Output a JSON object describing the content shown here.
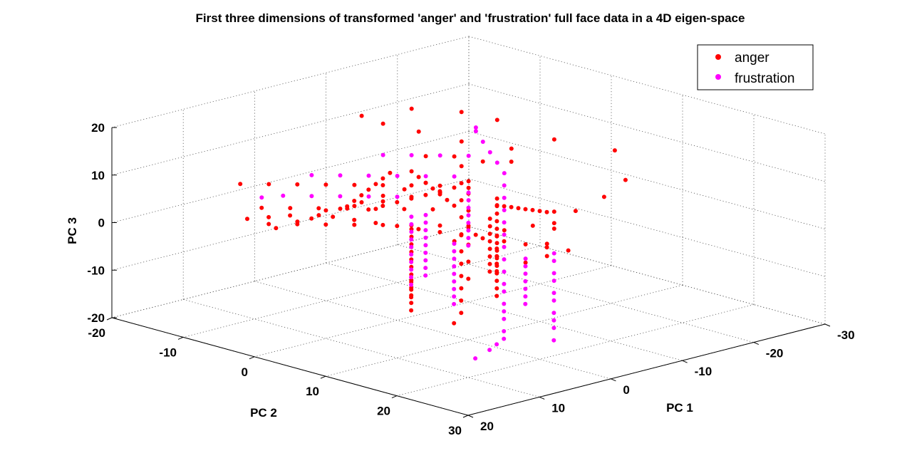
{
  "chart_data": {
    "type": "scatter",
    "title": "First three dimensions of transformed 'anger' and 'frustration' full face data in a 4D eigen-space",
    "xlabel": "PC 1",
    "ylabel": "PC 2",
    "zlabel": "PC 3",
    "xlim": [
      -30,
      20
    ],
    "ylim": [
      -20,
      30
    ],
    "zlim": [
      -20,
      20
    ],
    "xticks": [
      "-30",
      "-20",
      "-10",
      "0",
      "10",
      "20"
    ],
    "yticks": [
      "-20",
      "-10",
      "0",
      "10",
      "20",
      "30"
    ],
    "zticks": [
      "-20",
      "-10",
      "0",
      "10",
      "20"
    ],
    "grid": true,
    "legend_position": "top-right",
    "series": [
      {
        "name": "anger",
        "color": "#ff0000",
        "points": [
          [
            -25.5,
            5,
            8
          ],
          [
            -24,
            -2,
            8
          ],
          [
            -21,
            -5,
            6
          ],
          [
            -18,
            -9,
            7
          ],
          [
            -15,
            -12,
            9
          ],
          [
            -12,
            -14,
            11
          ],
          [
            -10,
            -15,
            13
          ],
          [
            -13,
            -11,
            15
          ],
          [
            -17,
            -8,
            14
          ],
          [
            -20,
            -6,
            12
          ],
          [
            -26,
            6,
            2
          ],
          [
            -25,
            4,
            -2
          ],
          [
            -23,
            2,
            -5
          ],
          [
            -22,
            0,
            -8
          ],
          [
            -21,
            -2,
            -9
          ],
          [
            -19,
            -4,
            -10
          ],
          [
            -17,
            -6,
            -11
          ],
          [
            -15,
            -7,
            -12
          ],
          [
            -20,
            2,
            -4
          ],
          [
            -18,
            4,
            -6
          ],
          [
            -16,
            5,
            -8
          ],
          [
            -14,
            7,
            -9
          ],
          [
            -12,
            6,
            -10
          ],
          [
            -9,
            -5,
            9
          ],
          [
            -11,
            -3,
            9
          ],
          [
            -13,
            -1,
            8
          ],
          [
            -15,
            1,
            8
          ],
          [
            -8,
            2,
            7
          ],
          [
            -6,
            4,
            6
          ],
          [
            -4,
            6,
            4
          ],
          [
            -2,
            8,
            2
          ],
          [
            0,
            10,
            0
          ],
          [
            2,
            12,
            -2
          ],
          [
            4,
            14,
            -4
          ],
          [
            -10,
            0,
            4
          ],
          [
            -8,
            -2,
            3
          ],
          [
            -6,
            -4,
            2
          ],
          [
            -4,
            -6,
            1
          ],
          [
            -2,
            -8,
            0
          ],
          [
            0,
            -10,
            -1
          ],
          [
            -14,
            -5,
            5
          ],
          [
            -12,
            -3,
            3
          ],
          [
            -10,
            -1,
            1
          ],
          [
            -8,
            1,
            -1
          ],
          [
            -6,
            3,
            -3
          ],
          [
            -4,
            5,
            -5
          ],
          [
            -2,
            7,
            -6
          ],
          [
            0,
            9,
            -7
          ],
          [
            2,
            11,
            -8
          ],
          [
            4,
            13,
            -9
          ],
          [
            6,
            15,
            -10
          ],
          [
            8,
            16,
            -11
          ],
          [
            -12,
            12,
            -5
          ],
          [
            -10,
            11,
            -4
          ],
          [
            -8,
            10,
            -3
          ],
          [
            -6,
            9,
            -2
          ],
          [
            -4,
            8,
            -1
          ],
          [
            -2,
            7,
            0
          ],
          [
            0,
            6,
            1
          ],
          [
            2,
            5,
            2
          ],
          [
            4,
            4,
            3
          ],
          [
            6,
            3,
            4
          ],
          [
            8,
            2,
            5
          ],
          [
            10,
            1,
            6
          ],
          [
            12,
            0,
            6
          ],
          [
            14,
            -1,
            7
          ],
          [
            16,
            -2,
            7
          ],
          [
            18,
            -3,
            7
          ],
          [
            -6,
            0,
            6
          ],
          [
            -4,
            -2,
            6
          ],
          [
            -2,
            -4,
            6
          ],
          [
            0,
            -6,
            6
          ],
          [
            2,
            -8,
            6
          ],
          [
            4,
            -10,
            6
          ],
          [
            6,
            -12,
            6
          ],
          [
            8,
            -14,
            6
          ],
          [
            -8,
            6,
            5
          ],
          [
            -6,
            8,
            5
          ],
          [
            -4,
            10,
            5
          ],
          [
            -2,
            12,
            5
          ],
          [
            0,
            14,
            5
          ],
          [
            2,
            16,
            5
          ],
          [
            4,
            18,
            4
          ],
          [
            6,
            20,
            4
          ],
          [
            8,
            22,
            4
          ],
          [
            10,
            24,
            4
          ],
          [
            -3,
            2,
            3
          ],
          [
            -1,
            0,
            3
          ],
          [
            1,
            -2,
            3
          ],
          [
            3,
            -4,
            3
          ],
          [
            5,
            -6,
            3
          ],
          [
            7,
            -8,
            3
          ],
          [
            9,
            -10,
            3
          ],
          [
            -5,
            5,
            0
          ],
          [
            -3,
            3,
            0
          ],
          [
            -1,
            1,
            0
          ],
          [
            1,
            -1,
            0
          ],
          [
            3,
            -3,
            0
          ],
          [
            5,
            -5,
            0
          ],
          [
            7,
            -7,
            0
          ],
          [
            9,
            -9,
            0
          ],
          [
            -7,
            7,
            -2
          ],
          [
            -5,
            9,
            -2
          ],
          [
            -3,
            11,
            -2
          ],
          [
            -1,
            13,
            -2
          ],
          [
            1,
            15,
            -2
          ],
          [
            3,
            17,
            -2
          ],
          [
            5,
            19,
            -2
          ],
          [
            7,
            21,
            -2
          ],
          [
            9,
            23,
            -2
          ],
          [
            -10,
            4,
            2
          ],
          [
            -9,
            6,
            3
          ],
          [
            -8,
            8,
            4
          ],
          [
            -7,
            10,
            5
          ],
          [
            -6,
            12,
            6
          ],
          [
            -5,
            14,
            7
          ],
          [
            -4,
            16,
            8
          ],
          [
            -3,
            18,
            9
          ],
          [
            -12,
            -8,
            1
          ],
          [
            -10,
            -9,
            0
          ],
          [
            -8,
            -10,
            -1
          ],
          [
            -6,
            -11,
            -2
          ],
          [
            -4,
            -12,
            -3
          ],
          [
            -2,
            -13,
            -4
          ],
          [
            0,
            -14,
            -5
          ],
          [
            2,
            -15,
            -6
          ],
          [
            -4,
            4,
            8
          ],
          [
            -2,
            4,
            8
          ],
          [
            0,
            4,
            8
          ],
          [
            2,
            4,
            8
          ],
          [
            4,
            4,
            8
          ],
          [
            6,
            4,
            8
          ],
          [
            8,
            4,
            8
          ],
          [
            -5,
            -3,
            -4
          ],
          [
            -3,
            -1,
            -4
          ],
          [
            -1,
            1,
            -4
          ],
          [
            1,
            3,
            -4
          ],
          [
            3,
            5,
            -4
          ],
          [
            5,
            7,
            -4
          ],
          [
            7,
            9,
            -4
          ],
          [
            9,
            11,
            -4
          ],
          [
            11,
            13,
            -4
          ],
          [
            13,
            15,
            -4
          ],
          [
            -9,
            -7,
            5
          ],
          [
            -8,
            -5,
            5
          ],
          [
            -7,
            -3,
            5
          ],
          [
            -6,
            -1,
            5
          ],
          [
            -5,
            1,
            5
          ],
          [
            -4,
            3,
            5
          ],
          [
            -3,
            5,
            5
          ],
          [
            -2,
            -3,
            9
          ],
          [
            0,
            -2,
            9
          ],
          [
            2,
            -1,
            9
          ],
          [
            4,
            0,
            9
          ],
          [
            6,
            1,
            9
          ],
          [
            8,
            2,
            9
          ],
          [
            10,
            3,
            9
          ],
          [
            6,
            8,
            -6
          ],
          [
            8,
            10,
            -6
          ],
          [
            10,
            12,
            -6
          ],
          [
            12,
            14,
            -6
          ],
          [
            14,
            16,
            -6
          ],
          [
            -16,
            -3,
            -6
          ],
          [
            -14,
            -1,
            -6
          ],
          [
            -12,
            1,
            -6
          ],
          [
            -10,
            3,
            -6
          ],
          [
            -8,
            5,
            -6
          ],
          [
            -6,
            7,
            -6
          ],
          [
            -4,
            9,
            -6
          ],
          [
            -2,
            11,
            -6
          ]
        ]
      },
      {
        "name": "frustration",
        "color": "#ff00ff",
        "points": [
          [
            -5,
            10,
            -5
          ],
          [
            -3,
            12,
            -6
          ],
          [
            -1,
            14,
            -7
          ],
          [
            1,
            16,
            -7
          ],
          [
            3,
            18,
            -8
          ],
          [
            5,
            20,
            -8
          ],
          [
            7,
            22,
            -8
          ],
          [
            9,
            24,
            -9
          ],
          [
            11,
            26,
            -9
          ],
          [
            13,
            27,
            -9
          ],
          [
            15,
            28,
            -9
          ],
          [
            17,
            28,
            -10
          ],
          [
            -7,
            8,
            -4
          ],
          [
            -9,
            6,
            -3
          ],
          [
            -11,
            4,
            -2
          ],
          [
            -13,
            2,
            -1
          ],
          [
            -15,
            0,
            0
          ],
          [
            -17,
            -2,
            1
          ],
          [
            -19,
            -4,
            2
          ],
          [
            -20,
            -6,
            3
          ],
          [
            -21,
            -8,
            4
          ],
          [
            -22,
            -10,
            5
          ],
          [
            -23,
            -12,
            6
          ],
          [
            -24,
            -13,
            6
          ],
          [
            -14,
            8,
            -8
          ],
          [
            -12,
            10,
            -8
          ],
          [
            -10,
            12,
            -9
          ],
          [
            -8,
            14,
            -9
          ],
          [
            -6,
            16,
            -10
          ],
          [
            -4,
            18,
            -10
          ],
          [
            -2,
            20,
            -11
          ],
          [
            0,
            22,
            -11
          ],
          [
            2,
            24,
            -11
          ],
          [
            4,
            26,
            -12
          ],
          [
            -10,
            0,
            3
          ],
          [
            -8,
            2,
            3
          ],
          [
            -6,
            4,
            3
          ],
          [
            -4,
            6,
            3
          ],
          [
            -2,
            8,
            3
          ],
          [
            0,
            10,
            3
          ],
          [
            2,
            12,
            3
          ],
          [
            4,
            14,
            3
          ],
          [
            -6,
            -2,
            -1
          ],
          [
            -4,
            0,
            -1
          ],
          [
            -2,
            2,
            -1
          ],
          [
            0,
            4,
            -1
          ],
          [
            2,
            6,
            -1
          ],
          [
            4,
            8,
            -1
          ],
          [
            6,
            10,
            -1
          ],
          [
            8,
            12,
            -1
          ],
          [
            10,
            14,
            -1
          ],
          [
            -12,
            -4,
            4
          ],
          [
            -10,
            -6,
            4
          ],
          [
            -8,
            -8,
            4
          ],
          [
            -6,
            -10,
            4
          ],
          [
            -4,
            -12,
            4
          ],
          [
            -2,
            -14,
            4
          ],
          [
            -3,
            5,
            -3
          ],
          [
            -1,
            7,
            -3
          ],
          [
            1,
            9,
            -3
          ],
          [
            3,
            11,
            -3
          ],
          [
            5,
            13,
            -3
          ],
          [
            7,
            15,
            -3
          ],
          [
            9,
            17,
            -3
          ],
          [
            11,
            19,
            -3
          ],
          [
            13,
            21,
            -3
          ],
          [
            -8,
            10,
            -6
          ],
          [
            -6,
            12,
            -6
          ],
          [
            -4,
            14,
            -6
          ],
          [
            -2,
            16,
            -6
          ],
          [
            0,
            18,
            -6
          ],
          [
            2,
            20,
            -6
          ],
          [
            4,
            22,
            -6
          ],
          [
            -16,
            -6,
            6
          ],
          [
            -14,
            -8,
            6
          ],
          [
            -12,
            -10,
            6
          ],
          [
            -10,
            -12,
            6
          ],
          [
            -2,
            0,
            1
          ],
          [
            0,
            2,
            1
          ],
          [
            2,
            4,
            1
          ],
          [
            4,
            6,
            1
          ],
          [
            6,
            8,
            1
          ],
          [
            8,
            10,
            1
          ],
          [
            10,
            12,
            1
          ],
          [
            12,
            14,
            1
          ],
          [
            14,
            16,
            1
          ],
          [
            16,
            18,
            1
          ],
          [
            -5,
            -5,
            2
          ],
          [
            -3,
            -7,
            2
          ],
          [
            -1,
            -9,
            2
          ],
          [
            1,
            -11,
            2
          ],
          [
            3,
            -13,
            2
          ],
          [
            5,
            -14,
            2
          ]
        ]
      }
    ]
  }
}
